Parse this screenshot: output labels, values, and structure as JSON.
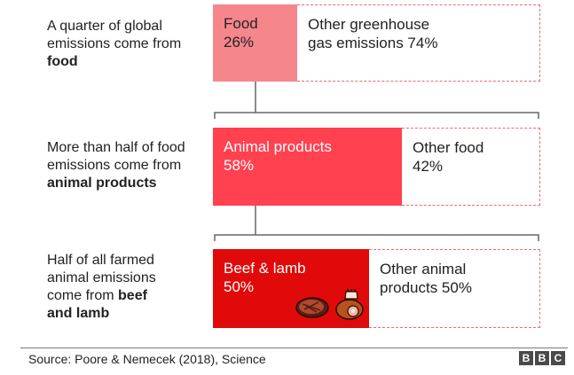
{
  "chart_data": {
    "type": "bar",
    "rows": [
      {
        "label_parts": [
          "A quarter of global",
          "emissions come from",
          "food"
        ],
        "label_bold_index": 2,
        "share": {
          "name": "Food",
          "value": 26,
          "text": "26%"
        },
        "rest": {
          "name_line1": "Other greenhouse",
          "name_line2": "gas emissions 74%",
          "value": 74
        }
      },
      {
        "label_parts": [
          "More than half of food",
          "emissions come from",
          "animal products"
        ],
        "label_bold_index": 2,
        "share": {
          "name": "Animal products",
          "value": 58,
          "text": "58%"
        },
        "rest": {
          "name_line1": "Other food",
          "name_line2": "42%",
          "value": 42
        }
      },
      {
        "label_parts": [
          "Half of all farmed",
          "animal emissions",
          "come from",
          "beef",
          "and lamb"
        ],
        "share": {
          "name": "Beef & lamb",
          "value": 50,
          "text": "50%"
        },
        "rest": {
          "name_line1": "Other animal",
          "name_line2": "products 50%",
          "value": 50
        }
      }
    ]
  },
  "source": "Source: Poore & Nemecek (2018), Science",
  "logo": [
    "B",
    "B",
    "C"
  ],
  "colors": {
    "food": "#f5868c",
    "animal": "#ff4150",
    "beef": "#e00a0a",
    "dash": "#ef6a74"
  },
  "icons": [
    "steak-icon",
    "ham-icon"
  ]
}
